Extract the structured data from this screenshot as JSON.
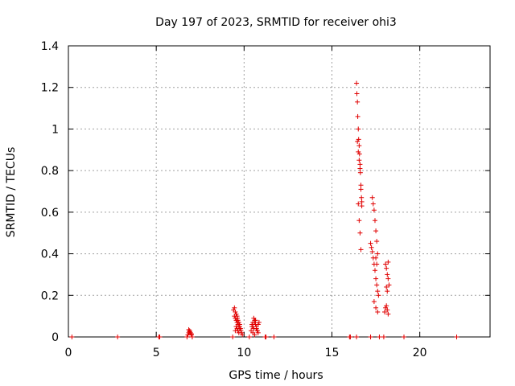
{
  "chart_data": {
    "type": "scatter",
    "title": "Day 197 of 2023, SRMTID for receiver ohi3",
    "xlabel": "GPS time / hours",
    "ylabel": "SRMTID / TECUs",
    "xlim": [
      0,
      24
    ],
    "ylim": [
      0,
      1.4
    ],
    "xticks": [
      0,
      5,
      10,
      15,
      20
    ],
    "yticks": [
      0,
      0.2,
      0.4,
      0.6,
      0.8,
      1,
      1.2,
      1.4
    ],
    "xtick_labels": [
      "0",
      "5",
      "10",
      "15",
      "20"
    ],
    "ytick_labels": [
      "0",
      "0.2",
      "0.4",
      "0.6",
      "0.8",
      "1",
      "1.2",
      "1.4"
    ],
    "grid": true,
    "marker": "+",
    "marker_color": "#e00000",
    "series": [
      {
        "name": "SRMTID",
        "x": [
          0.2,
          2.8,
          5.15,
          5.2,
          6.75,
          6.8,
          6.85,
          6.9,
          6.95,
          7.0,
          7.05,
          6.85,
          6.9,
          7.0,
          9.35,
          9.4,
          9.45,
          9.5,
          9.55,
          9.6,
          9.62,
          9.65,
          9.7,
          9.72,
          9.75,
          9.8,
          9.82,
          9.85,
          9.9,
          9.45,
          9.5,
          9.55,
          9.6,
          9.65,
          9.7,
          9.75,
          9.5,
          9.55,
          9.6,
          9.65,
          9.7,
          9.75,
          10.3,
          10.4,
          10.45,
          10.5,
          10.55,
          10.6,
          10.65,
          10.7,
          10.75,
          10.8,
          10.85,
          10.45,
          10.5,
          10.55,
          10.6,
          10.65,
          10.7,
          10.75,
          10.5,
          10.6,
          10.7,
          10.8,
          11.2,
          11.25,
          11.7,
          16.0,
          16.05,
          16.4,
          16.4,
          16.42,
          16.45,
          16.47,
          16.5,
          16.52,
          16.55,
          16.57,
          16.6,
          16.62,
          16.65,
          16.68,
          16.7,
          16.45,
          16.5,
          16.55,
          16.6,
          16.65,
          16.7,
          16.5,
          16.55,
          16.6,
          16.65,
          17.2,
          17.25,
          17.3,
          17.35,
          17.4,
          17.45,
          17.5,
          17.55,
          17.6,
          17.65,
          17.3,
          17.35,
          17.4,
          17.45,
          17.5,
          17.55,
          17.6,
          17.4,
          17.5,
          17.6,
          17.5,
          17.55,
          17.2,
          17.7,
          17.95,
          18.05,
          18.1,
          18.15,
          18.2,
          18.25,
          18.1,
          18.15,
          18.2,
          18.0,
          18.05,
          18.1,
          18.15,
          18.2,
          19.1,
          22.1
        ],
        "y": [
          0,
          0,
          0,
          0,
          0,
          0.01,
          0.02,
          0.03,
          0.02,
          0.01,
          0,
          0.035,
          0.025,
          0.015,
          0,
          0.13,
          0.14,
          0.12,
          0.11,
          0.1,
          0.09,
          0.08,
          0.07,
          0.06,
          0.05,
          0.04,
          0.03,
          0.02,
          0.01,
          0.1,
          0.09,
          0.08,
          0.07,
          0.06,
          0.05,
          0.04,
          0.03,
          0.05,
          0.04,
          0.03,
          0.02,
          0.06,
          0,
          0.03,
          0.05,
          0.07,
          0.09,
          0.08,
          0.06,
          0.04,
          0.03,
          0.02,
          0.07,
          0.06,
          0.05,
          0.04,
          0.07,
          0.08,
          0.05,
          0.03,
          0.02,
          0.01,
          0.04,
          0.06,
          0,
          0,
          0,
          0,
          0,
          0,
          1.22,
          1.17,
          1.13,
          1.06,
          1.0,
          0.95,
          0.92,
          0.88,
          0.83,
          0.79,
          0.73,
          0.67,
          0.63,
          0.94,
          0.89,
          0.85,
          0.81,
          0.71,
          0.65,
          0.64,
          0.56,
          0.5,
          0.42,
          0.45,
          0.43,
          0.41,
          0.38,
          0.35,
          0.32,
          0.28,
          0.25,
          0.22,
          0.2,
          0.67,
          0.64,
          0.61,
          0.56,
          0.51,
          0.46,
          0.4,
          0.17,
          0.14,
          0.12,
          0.38,
          0.35,
          0,
          0,
          0,
          0.35,
          0.33,
          0.3,
          0.28,
          0.25,
          0.15,
          0.13,
          0.11,
          0.12,
          0.14,
          0.24,
          0.22,
          0.36,
          0,
          0
        ]
      }
    ]
  }
}
